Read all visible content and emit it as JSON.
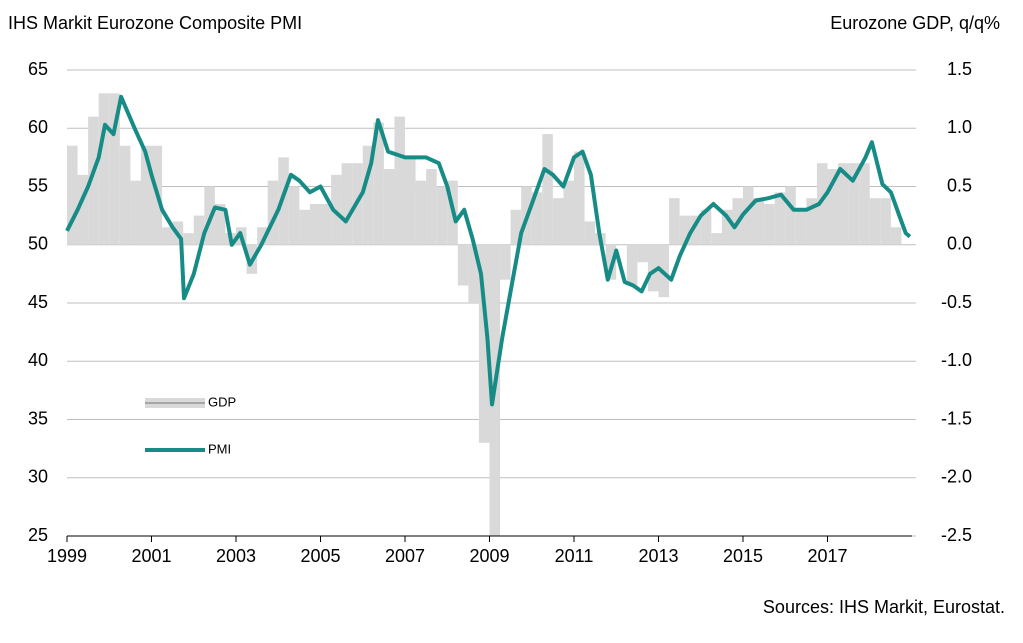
{
  "chart_data": {
    "type": "combo",
    "title": "IHS Markit Eurozone Composite PMI",
    "y2_label": "Eurozone GDP, q/q%",
    "source": "Sources: IHS Markit, Eurostat.",
    "xlim": [
      1999,
      2019
    ],
    "xticks": [
      1999,
      2001,
      2003,
      2005,
      2007,
      2009,
      2011,
      2013,
      2015,
      2017
    ],
    "ylim": [
      25,
      65
    ],
    "yticks": [
      25,
      30,
      35,
      40,
      45,
      50,
      55,
      60,
      65
    ],
    "y2lim": [
      -2.5,
      1.5
    ],
    "y2ticks": [
      -2.5,
      {
        "value": -2,
        "label": "-2.0"
      },
      -1.5,
      {
        "value": -1,
        "label": "-1.0"
      },
      -0.5,
      {
        "value": 0,
        "label": "0.0"
      },
      0.5,
      {
        "value": 1,
        "label": "1.0"
      },
      1.5
    ],
    "grid": true,
    "series": [
      {
        "name": "GDP",
        "type": "bar",
        "axis": "y2",
        "color": "#d9d9d9",
        "x": [
          1999,
          1999.25,
          1999.5,
          1999.75,
          2000,
          2000.25,
          2000.5,
          2000.75,
          2001,
          2001.25,
          2001.5,
          2001.75,
          2002,
          2002.25,
          2002.5,
          2002.75,
          2003,
          2003.25,
          2003.5,
          2003.75,
          2004,
          2004.25,
          2004.5,
          2004.75,
          2005,
          2005.25,
          2005.5,
          2005.75,
          2006,
          2006.25,
          2006.5,
          2006.75,
          2007,
          2007.25,
          2007.5,
          2007.75,
          2008,
          2008.25,
          2008.5,
          2008.75,
          2009,
          2009.25,
          2009.5,
          2009.75,
          2010,
          2010.25,
          2010.5,
          2010.75,
          2011,
          2011.25,
          2011.5,
          2011.75,
          2012,
          2012.25,
          2012.5,
          2012.75,
          2013,
          2013.25,
          2013.5,
          2013.75,
          2014,
          2014.25,
          2014.5,
          2014.75,
          2015,
          2015.25,
          2015.5,
          2015.75,
          2016,
          2016.25,
          2016.5,
          2016.75,
          2017,
          2017.25,
          2017.5,
          2017.75,
          2018,
          2018.25,
          2018.5
        ],
        "values": [
          0.85,
          0.6,
          1.1,
          1.3,
          1.3,
          0.85,
          0.55,
          0.85,
          0.85,
          0.15,
          0.2,
          0.1,
          0.25,
          0.5,
          0.35,
          0.1,
          0.15,
          -0.25,
          0.15,
          0.55,
          0.75,
          0.5,
          0.3,
          0.35,
          0.35,
          0.6,
          0.7,
          0.7,
          0.85,
          1.05,
          0.65,
          1.1,
          0.75,
          0.55,
          0.65,
          0.5,
          0.55,
          -0.35,
          -0.5,
          -1.7,
          -2.5,
          -0.3,
          0.3,
          0.5,
          0.45,
          0.95,
          0.4,
          0.55,
          0.8,
          0.2,
          0.1,
          -0.3,
          0.0,
          -0.35,
          -0.15,
          -0.4,
          -0.45,
          0.4,
          0.25,
          0.25,
          0.3,
          0.1,
          0.3,
          0.4,
          0.5,
          0.4,
          0.35,
          0.45,
          0.5,
          0.3,
          0.4,
          0.7,
          0.65,
          0.7,
          0.7,
          0.7,
          0.4,
          0.4,
          0.15
        ]
      },
      {
        "name": "PMI",
        "type": "line",
        "axis": "y",
        "color": "#178c86",
        "x": [
          1999,
          1999.25,
          1999.5,
          1999.75,
          1999.9,
          2000.1,
          2000.28,
          2000.6,
          2000.85,
          2001,
          2001.25,
          2001.5,
          2001.7,
          2001.77,
          2002,
          2002.25,
          2002.5,
          2002.75,
          2002.9,
          2003.1,
          2003.33,
          2003.6,
          2004,
          2004.3,
          2004.5,
          2004.75,
          2005,
          2005.3,
          2005.6,
          2006,
          2006.2,
          2006.36,
          2006.6,
          2007,
          2007.5,
          2007.8,
          2008,
          2008.2,
          2008.4,
          2008.6,
          2008.8,
          2008.95,
          2009.06,
          2009.3,
          2009.5,
          2009.75,
          2010,
          2010.3,
          2010.5,
          2010.75,
          2011,
          2011.2,
          2011.4,
          2011.6,
          2011.8,
          2012,
          2012.2,
          2012.4,
          2012.6,
          2012.8,
          2013,
          2013.3,
          2013.5,
          2013.75,
          2014,
          2014.3,
          2014.6,
          2014.8,
          2015,
          2015.3,
          2015.6,
          2015.9,
          2016.2,
          2016.5,
          2016.8,
          2017,
          2017.3,
          2017.6,
          2017.9,
          2018.05,
          2018.3,
          2018.5,
          2018.7,
          2018.85,
          2018.95
        ],
        "values": [
          51.2,
          53,
          55,
          57.5,
          60.3,
          59.5,
          62.7,
          60,
          58,
          56,
          53,
          51.5,
          50.5,
          45.4,
          47.5,
          51,
          53.2,
          53,
          50,
          51,
          48.3,
          50,
          53,
          56,
          55.5,
          54.5,
          55,
          53,
          52,
          54.5,
          57,
          60.7,
          58,
          57.5,
          57.5,
          57,
          55,
          52,
          53,
          50.5,
          47.5,
          42,
          36.3,
          42,
          46,
          51,
          53.5,
          56.5,
          56,
          55,
          57.5,
          58,
          56,
          51,
          47,
          49.5,
          46.8,
          46.5,
          46,
          47.5,
          48,
          47,
          49,
          51,
          52.5,
          53.5,
          52.5,
          51.5,
          52.6,
          53.8,
          54,
          54.3,
          53,
          53,
          53.5,
          54.5,
          56.5,
          55.5,
          57.5,
          58.8,
          55.2,
          54.5,
          52.5,
          51,
          50.7
        ]
      }
    ]
  }
}
